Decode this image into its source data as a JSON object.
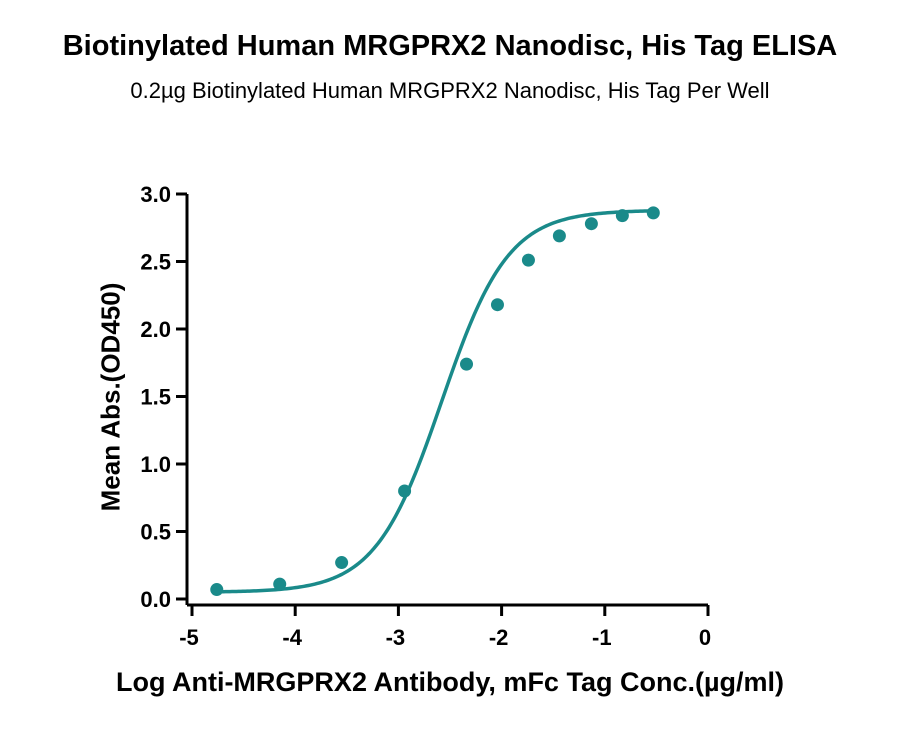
{
  "chart_data": {
    "type": "line",
    "title": "Biotinylated Human MRGPRX2 Nanodisc, His Tag ELISA",
    "subtitle": "0.2µg Biotinylated Human MRGPRX2 Nanodisc, His Tag Per Well",
    "xlabel": "Log Anti-MRGPRX2 Antibody, mFc Tag Conc.(µg/ml)",
    "ylabel": "Mean Abs.(OD450)",
    "xlim": [
      -5,
      0
    ],
    "ylim": [
      0,
      3.0
    ],
    "x_ticks": [
      -5,
      -4,
      -3,
      -2,
      -1,
      0
    ],
    "x_tick_labels": [
      "-5",
      "-4",
      "-3",
      "-2",
      "-1",
      "0"
    ],
    "y_ticks": [
      0,
      0.5,
      1.0,
      1.5,
      2.0,
      2.5,
      3.0
    ],
    "y_tick_labels": [
      "0.0",
      "0.5",
      "1.0",
      "1.5",
      "2.0",
      "2.5",
      "3.0"
    ],
    "grid": false,
    "color": "#1a8a8a",
    "series": [
      {
        "x": [
          -4.76,
          -4.15,
          -3.55,
          -2.94,
          -2.34,
          -2.04,
          -1.74,
          -1.44,
          -1.13,
          -0.83,
          -0.53
        ],
        "y": [
          0.07,
          0.11,
          0.27,
          0.8,
          1.74,
          2.18,
          2.51,
          2.69,
          2.78,
          2.84,
          2.86
        ]
      }
    ],
    "fit": {
      "bottom": 0.05,
      "top": 2.88,
      "log_ec50": -2.58,
      "hill_slope": 1.35
    }
  }
}
